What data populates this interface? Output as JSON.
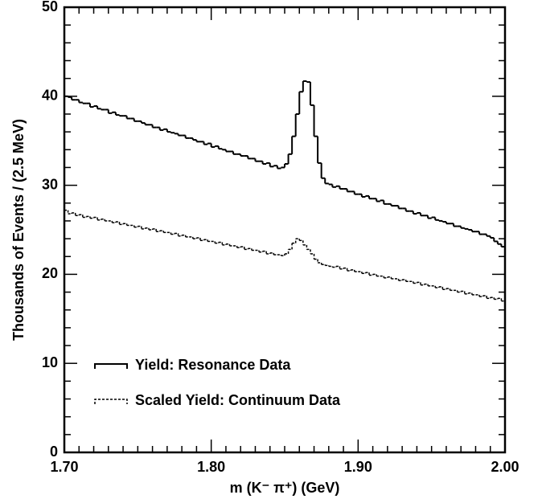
{
  "chart_data": {
    "type": "histogram",
    "xlabel": "m (K⁻ π⁺) (GeV)",
    "ylabel": "Thousands of Events / (2.5 MeV)",
    "bins": [
      1.7,
      1.7025,
      1.705,
      1.7075,
      1.71,
      1.7125,
      1.715,
      1.7175,
      1.72,
      1.7225,
      1.725,
      1.7275,
      1.73,
      1.7325,
      1.735,
      1.7375,
      1.74,
      1.7425,
      1.745,
      1.7475,
      1.75,
      1.7525,
      1.755,
      1.7575,
      1.76,
      1.7625,
      1.765,
      1.7675,
      1.77,
      1.7725,
      1.775,
      1.7775,
      1.78,
      1.7825,
      1.785,
      1.7875,
      1.79,
      1.7925,
      1.795,
      1.7975,
      1.8,
      1.8025,
      1.805,
      1.8075,
      1.81,
      1.8125,
      1.815,
      1.8175,
      1.82,
      1.8225,
      1.825,
      1.8275,
      1.83,
      1.8325,
      1.835,
      1.8375,
      1.84,
      1.8425,
      1.845,
      1.8475,
      1.85,
      1.8525,
      1.855,
      1.8575,
      1.86,
      1.8625,
      1.865,
      1.8675,
      1.87,
      1.8725,
      1.875,
      1.8775,
      1.88,
      1.8825,
      1.885,
      1.8875,
      1.89,
      1.8925,
      1.895,
      1.8975,
      1.9,
      1.9025,
      1.905,
      1.9075,
      1.91,
      1.9125,
      1.915,
      1.9175,
      1.92,
      1.9225,
      1.925,
      1.9275,
      1.93,
      1.9325,
      1.935,
      1.9375,
      1.94,
      1.9425,
      1.945,
      1.9475,
      1.95,
      1.9525,
      1.955,
      1.9575,
      1.96,
      1.9625,
      1.965,
      1.9675,
      1.97,
      1.9725,
      1.975,
      1.9775,
      1.98,
      1.9825,
      1.985,
      1.9875,
      1.99,
      1.9925,
      1.995,
      1.9975,
      2.0
    ],
    "series": [
      {
        "name": "Yield: Resonance Data",
        "color": "#000000",
        "style": "solid",
        "values": [
          40.0,
          39.9,
          39.6,
          39.6,
          39.3,
          39.2,
          39.2,
          38.8,
          38.9,
          38.6,
          38.5,
          38.5,
          38.1,
          38.2,
          37.9,
          37.8,
          37.8,
          37.5,
          37.5,
          37.2,
          37.2,
          37.0,
          36.8,
          36.8,
          36.5,
          36.5,
          36.2,
          36.3,
          36.0,
          35.9,
          35.8,
          35.6,
          35.6,
          35.3,
          35.3,
          35.1,
          34.9,
          34.9,
          34.6,
          34.7,
          34.3,
          34.4,
          34.1,
          34.0,
          33.8,
          33.8,
          33.5,
          33.5,
          33.3,
          33.3,
          33.0,
          33.0,
          32.7,
          32.7,
          32.4,
          32.5,
          32.1,
          32.2,
          31.9,
          32.0,
          32.4,
          33.5,
          35.5,
          38.0,
          40.5,
          41.7,
          41.6,
          39.0,
          35.5,
          32.5,
          30.8,
          30.2,
          30.1,
          29.8,
          29.9,
          29.6,
          29.6,
          29.3,
          29.3,
          29.0,
          29.0,
          28.7,
          28.8,
          28.5,
          28.5,
          28.2,
          28.3,
          27.9,
          27.9,
          27.7,
          27.7,
          27.4,
          27.4,
          27.1,
          27.1,
          26.8,
          26.9,
          26.6,
          26.6,
          26.3,
          26.4,
          26.1,
          26.0,
          25.9,
          25.7,
          25.7,
          25.4,
          25.4,
          25.2,
          25.1,
          25.0,
          24.8,
          24.8,
          24.5,
          24.5,
          24.3,
          24.1,
          23.7,
          23.4,
          23.1
        ]
      },
      {
        "name": "Scaled Yield: Continuum Data",
        "color": "#000000",
        "style": "dashed",
        "values": [
          27.2,
          26.8,
          26.9,
          26.6,
          26.7,
          26.4,
          26.5,
          26.3,
          26.4,
          26.1,
          26.2,
          26.0,
          26.0,
          25.8,
          25.9,
          25.6,
          25.7,
          25.5,
          25.5,
          25.3,
          25.4,
          25.1,
          25.2,
          25.0,
          25.1,
          24.8,
          24.9,
          24.7,
          24.7,
          24.5,
          24.6,
          24.3,
          24.4,
          24.2,
          24.2,
          24.0,
          24.1,
          23.8,
          23.9,
          23.7,
          23.7,
          23.5,
          23.6,
          23.3,
          23.4,
          23.2,
          23.2,
          23.0,
          23.1,
          22.8,
          22.9,
          22.7,
          22.7,
          22.5,
          22.6,
          22.3,
          22.4,
          22.2,
          22.2,
          22.1,
          22.3,
          22.8,
          23.5,
          24.0,
          23.8,
          23.3,
          22.8,
          22.3,
          21.7,
          21.3,
          21.1,
          21.0,
          20.9,
          20.8,
          20.9,
          20.6,
          20.7,
          20.4,
          20.5,
          20.3,
          20.3,
          20.1,
          20.2,
          19.9,
          20.0,
          19.8,
          19.8,
          19.6,
          19.7,
          19.5,
          19.5,
          19.3,
          19.4,
          19.2,
          19.2,
          19.0,
          19.1,
          18.8,
          18.9,
          18.7,
          18.7,
          18.5,
          18.6,
          18.3,
          18.4,
          18.2,
          18.2,
          18.0,
          18.1,
          17.8,
          17.9,
          17.7,
          17.7,
          17.5,
          17.6,
          17.3,
          17.4,
          17.2,
          17.3,
          17.0
        ]
      }
    ],
    "xlim": [
      1.7,
      2.0
    ],
    "xticks": [
      {
        "value": 1.7,
        "label": "1.70"
      },
      {
        "value": 1.8,
        "label": "1.80"
      },
      {
        "value": 1.9,
        "label": "1.90"
      },
      {
        "value": 2.0,
        "label": "2.00"
      }
    ],
    "ylim": [
      0,
      50
    ],
    "yticks": [
      0,
      10,
      20,
      30,
      40,
      50
    ],
    "legend": "lower left"
  }
}
